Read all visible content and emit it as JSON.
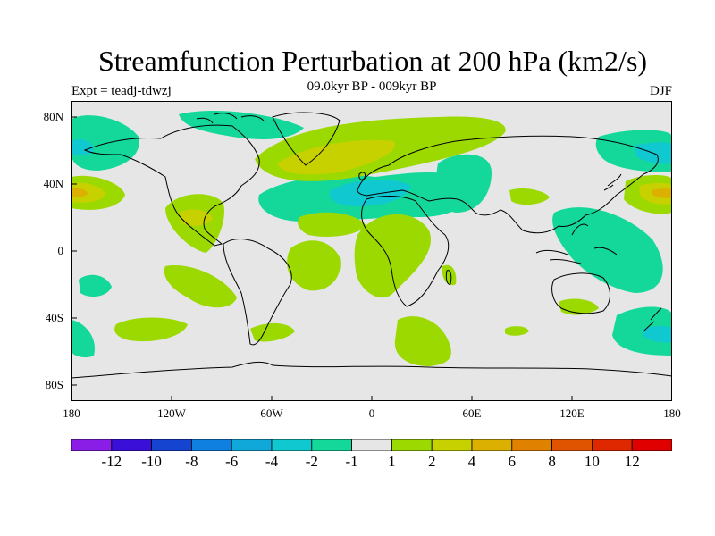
{
  "title": "Streamfunction Perturbation at 200 hPa (km2/s)",
  "subtitle": "09.0kyr BP - 009kyr BP",
  "experiment": "Expt = teadj-tdwzj",
  "season": "DJF",
  "lat_labels": [
    "80N",
    "40N",
    "0",
    "40S",
    "80S"
  ],
  "lon_labels": [
    "180",
    "120W",
    "60W",
    "0",
    "60E",
    "120E",
    "180"
  ],
  "colorbar": {
    "labels": [
      "-12",
      "-10",
      "-8",
      "-6",
      "-4",
      "-2",
      "-1",
      "1",
      "2",
      "4",
      "6",
      "8",
      "10",
      "12"
    ],
    "colors": [
      "#8a1ee6",
      "#3a10d8",
      "#1444d0",
      "#1080e0",
      "#10a8d8",
      "#10c8d0",
      "#14d89a",
      "#e6e6e6",
      "#9bd900",
      "#c8d100",
      "#dcb000",
      "#e08200",
      "#e05400",
      "#e02800",
      "#e00000"
    ]
  },
  "fill_colors": {
    "neutral": "#e6e6e6",
    "pos1": "#9bd900",
    "pos2": "#c8d100",
    "pos3": "#dcb000",
    "pos4": "#e08200",
    "neg1": "#14d89a",
    "neg2": "#10c8d0",
    "neg3": "#10a8d8"
  }
}
